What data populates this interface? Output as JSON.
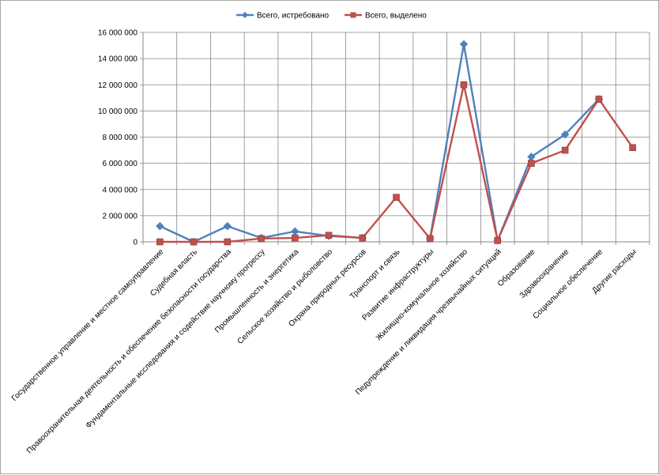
{
  "chart_data": {
    "type": "line",
    "title": "",
    "xlabel": "",
    "ylabel": "",
    "ylim": [
      0,
      16000000
    ],
    "yticks": [
      0,
      2000000,
      4000000,
      6000000,
      8000000,
      10000000,
      12000000,
      14000000,
      16000000
    ],
    "ytick_labels": [
      "0",
      "2 000 000",
      "4 000 000",
      "6 000 000",
      "8 000 000",
      "10 000 000",
      "12 000 000",
      "14 000 000",
      "16 000 000"
    ],
    "grid": true,
    "legend": "top",
    "categories": [
      "Государственное управление и местное самоуправление",
      "Судебная власть",
      "Правоохранительная деятельность и обеспечение безопасности государства",
      "Фундаментальные исследования и содействие научному прогрессу",
      "Промышленность и энергетика",
      "Сельское хозяйство и рыболовство",
      "Охрана природных ресурсов",
      "Транспорт и связь",
      "Развитие инфраструктуры",
      "Жилищно-комунальное хозяйство",
      "Педупреждение и ликвидация чрезвычайных ситуаций",
      "Образование",
      "Здравоохранение",
      "Социальное обеспечение",
      "Другие расходы"
    ],
    "series": [
      {
        "name": "Всего, истребовано",
        "color": "#4f81bd",
        "marker": "diamond",
        "values": [
          1200000,
          0,
          1200000,
          300000,
          800000,
          450000,
          300000,
          null,
          250000,
          15100000,
          100000,
          6500000,
          8200000,
          10900000,
          null
        ]
      },
      {
        "name": "Всего, выделено",
        "color": "#c0504d",
        "marker": "square",
        "values": [
          0,
          0,
          0,
          250000,
          300000,
          500000,
          300000,
          3400000,
          250000,
          12000000,
          100000,
          6000000,
          7000000,
          10900000,
          7200000
        ]
      }
    ]
  }
}
